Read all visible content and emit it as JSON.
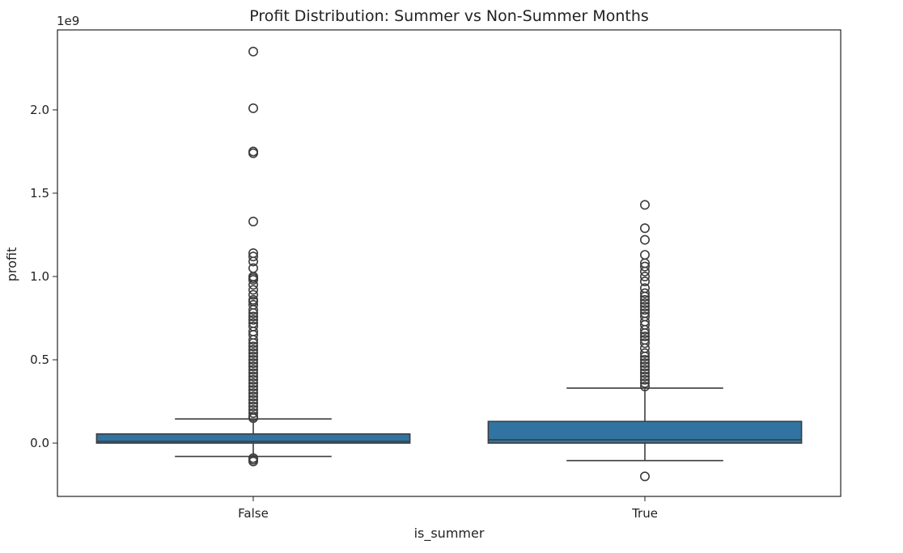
{
  "chart_data": {
    "type": "box",
    "title": "Profit Distribution: Summer vs Non-Summer Months",
    "xlabel": "is_summer",
    "ylabel": "profit",
    "y_offset_label": "1e9",
    "ylim": [
      -0.32,
      2.48
    ],
    "y_ticks": [
      0.0,
      0.5,
      1.0,
      1.5,
      2.0
    ],
    "y_tick_labels": [
      "0.0",
      "0.5",
      "1.0",
      "1.5",
      "2.0"
    ],
    "y_unit_scale": 1000000000,
    "grid": false,
    "legend": "none",
    "colors": {
      "box_fill": "#3274a1",
      "line": "#3d3d3d",
      "frame": "#222222"
    },
    "categories": [
      "False",
      "True"
    ],
    "boxes": [
      {
        "category": "False",
        "whisker_low": -0.08,
        "q1": 0.0,
        "median": 0.01,
        "q3": 0.055,
        "whisker_high": 0.145,
        "outliers": [
          2.35,
          2.01,
          1.75,
          1.74,
          1.33,
          1.14,
          1.12,
          1.09,
          1.05,
          1.0,
          0.99,
          0.98,
          0.95,
          0.92,
          0.89,
          0.86,
          0.85,
          0.83,
          0.8,
          0.78,
          0.76,
          0.74,
          0.72,
          0.7,
          0.67,
          0.65,
          0.62,
          0.6,
          0.58,
          0.56,
          0.54,
          0.52,
          0.5,
          0.48,
          0.46,
          0.44,
          0.42,
          0.4,
          0.38,
          0.36,
          0.34,
          0.32,
          0.3,
          0.28,
          0.26,
          0.24,
          0.22,
          0.2,
          0.18,
          0.16,
          0.15,
          -0.09,
          -0.1,
          -0.11
        ]
      },
      {
        "category": "True",
        "whisker_low": -0.105,
        "q1": 0.0,
        "median": 0.02,
        "q3": 0.13,
        "whisker_high": 0.33,
        "outliers": [
          1.43,
          1.29,
          1.22,
          1.13,
          1.08,
          1.06,
          1.03,
          1.0,
          0.97,
          0.93,
          0.9,
          0.88,
          0.86,
          0.84,
          0.82,
          0.8,
          0.78,
          0.76,
          0.73,
          0.71,
          0.68,
          0.66,
          0.64,
          0.62,
          0.6,
          0.57,
          0.54,
          0.52,
          0.5,
          0.48,
          0.46,
          0.44,
          0.42,
          0.4,
          0.38,
          0.36,
          0.34,
          -0.2
        ]
      }
    ]
  }
}
